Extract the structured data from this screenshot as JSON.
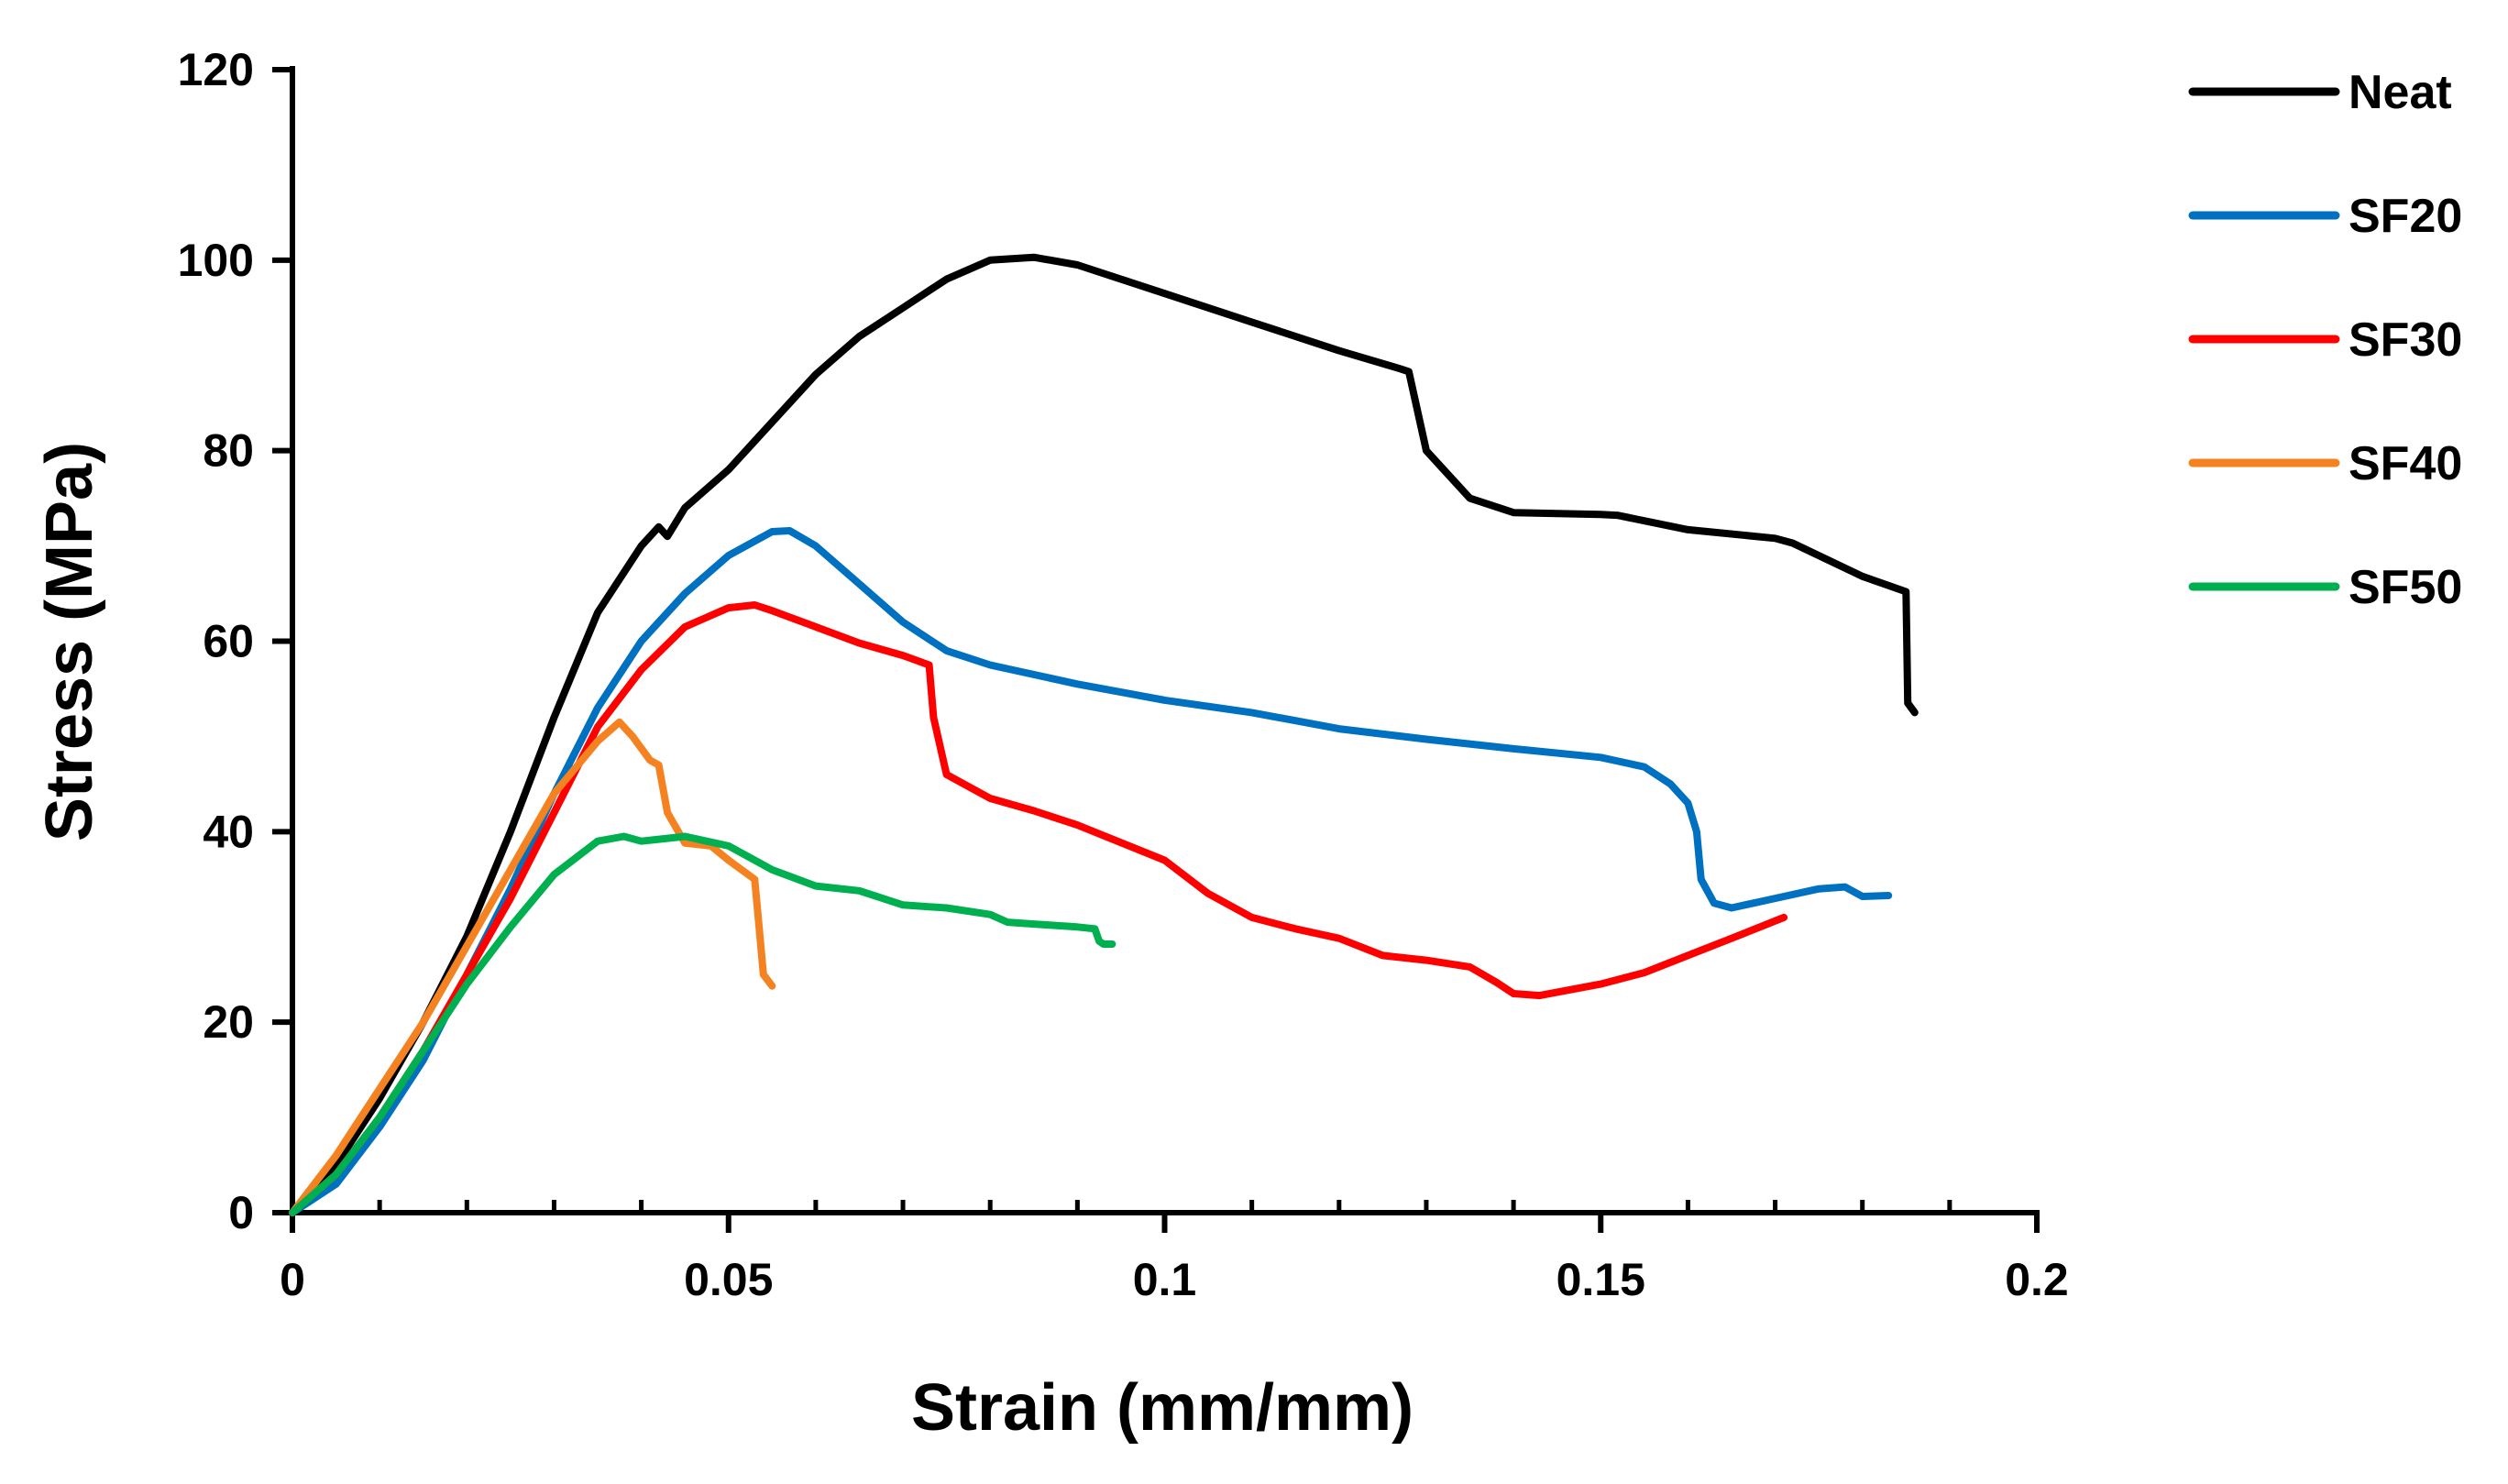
{
  "chart_data": {
    "type": "line",
    "title": "",
    "xlabel": "Strain (mm/mm)",
    "ylabel": "Stress (MPa)",
    "xlim": [
      0,
      0.2
    ],
    "ylim": [
      0,
      120
    ],
    "x_ticks": [
      0,
      0.05,
      0.1,
      0.15,
      0.2
    ],
    "x_tick_labels": [
      "0",
      "0.05",
      "0.1",
      "0.15",
      "0.2"
    ],
    "x_minor_step": 0.01,
    "y_ticks": [
      0,
      20,
      40,
      60,
      80,
      100,
      120
    ],
    "y_tick_labels": [
      "0",
      "20",
      "40",
      "60",
      "80",
      "100",
      "120"
    ],
    "grid": false,
    "legend_position": "right",
    "series": [
      {
        "name": "Neat",
        "color": "#000000",
        "points": [
          [
            0,
            0
          ],
          [
            0.005,
            5
          ],
          [
            0.01,
            12
          ],
          [
            0.015,
            20
          ],
          [
            0.02,
            29
          ],
          [
            0.025,
            40
          ],
          [
            0.03,
            52
          ],
          [
            0.035,
            63
          ],
          [
            0.04,
            70
          ],
          [
            0.042,
            72
          ],
          [
            0.043,
            71
          ],
          [
            0.045,
            74
          ],
          [
            0.05,
            78
          ],
          [
            0.055,
            83
          ],
          [
            0.06,
            88
          ],
          [
            0.065,
            92
          ],
          [
            0.07,
            95
          ],
          [
            0.075,
            98
          ],
          [
            0.08,
            100
          ],
          [
            0.085,
            100.3
          ],
          [
            0.09,
            99.5
          ],
          [
            0.1,
            96.5
          ],
          [
            0.11,
            93.5
          ],
          [
            0.12,
            90.5
          ],
          [
            0.127,
            88.6
          ],
          [
            0.128,
            88.3
          ],
          [
            0.13,
            80
          ],
          [
            0.135,
            75
          ],
          [
            0.14,
            73.5
          ],
          [
            0.15,
            73.3
          ],
          [
            0.152,
            73.2
          ],
          [
            0.16,
            71.7
          ],
          [
            0.17,
            70.8
          ],
          [
            0.172,
            70.3
          ],
          [
            0.18,
            66.8
          ],
          [
            0.185,
            65.2
          ],
          [
            0.1852,
            53.5
          ],
          [
            0.186,
            52.5
          ]
        ]
      },
      {
        "name": "SF20",
        "color": "#0070C0",
        "points": [
          [
            0,
            0
          ],
          [
            0.005,
            3
          ],
          [
            0.01,
            9
          ],
          [
            0.015,
            16
          ],
          [
            0.02,
            25
          ],
          [
            0.025,
            34
          ],
          [
            0.03,
            44
          ],
          [
            0.035,
            53
          ],
          [
            0.04,
            60
          ],
          [
            0.045,
            65
          ],
          [
            0.05,
            69
          ],
          [
            0.055,
            71.5
          ],
          [
            0.057,
            71.6
          ],
          [
            0.06,
            70
          ],
          [
            0.065,
            66
          ],
          [
            0.07,
            62
          ],
          [
            0.075,
            59
          ],
          [
            0.08,
            57.5
          ],
          [
            0.09,
            55.5
          ],
          [
            0.1,
            53.8
          ],
          [
            0.11,
            52.5
          ],
          [
            0.12,
            50.8
          ],
          [
            0.13,
            49.7
          ],
          [
            0.14,
            48.7
          ],
          [
            0.15,
            47.8
          ],
          [
            0.155,
            46.8
          ],
          [
            0.158,
            45
          ],
          [
            0.16,
            43
          ],
          [
            0.161,
            40
          ],
          [
            0.1615,
            35
          ],
          [
            0.163,
            32.5
          ],
          [
            0.165,
            32
          ],
          [
            0.17,
            33
          ],
          [
            0.175,
            34
          ],
          [
            0.178,
            34.2
          ],
          [
            0.18,
            33.2
          ],
          [
            0.183,
            33.3
          ]
        ]
      },
      {
        "name": "SF30",
        "color": "#FF0000",
        "points": [
          [
            0,
            0
          ],
          [
            0.005,
            4
          ],
          [
            0.01,
            10
          ],
          [
            0.015,
            17
          ],
          [
            0.02,
            25
          ],
          [
            0.025,
            33
          ],
          [
            0.03,
            42
          ],
          [
            0.035,
            51
          ],
          [
            0.04,
            57
          ],
          [
            0.045,
            61.5
          ],
          [
            0.05,
            63.5
          ],
          [
            0.053,
            63.8
          ],
          [
            0.055,
            63.2
          ],
          [
            0.06,
            61.5
          ],
          [
            0.065,
            59.8
          ],
          [
            0.07,
            58.5
          ],
          [
            0.073,
            57.5
          ],
          [
            0.0735,
            52
          ],
          [
            0.075,
            46
          ],
          [
            0.08,
            43.5
          ],
          [
            0.085,
            42.2
          ],
          [
            0.09,
            40.7
          ],
          [
            0.1,
            37
          ],
          [
            0.105,
            33.5
          ],
          [
            0.11,
            31
          ],
          [
            0.115,
            29.8
          ],
          [
            0.12,
            28.8
          ],
          [
            0.125,
            27
          ],
          [
            0.13,
            26.5
          ],
          [
            0.135,
            25.8
          ],
          [
            0.138,
            24.2
          ],
          [
            0.14,
            23
          ],
          [
            0.143,
            22.8
          ],
          [
            0.15,
            24
          ],
          [
            0.155,
            25.2
          ],
          [
            0.16,
            27
          ],
          [
            0.165,
            28.8
          ],
          [
            0.171,
            31
          ]
        ]
      },
      {
        "name": "SF40",
        "color": "#F58220",
        "points": [
          [
            0,
            0
          ],
          [
            0.005,
            6
          ],
          [
            0.01,
            13
          ],
          [
            0.015,
            20
          ],
          [
            0.02,
            28
          ],
          [
            0.025,
            36
          ],
          [
            0.03,
            44
          ],
          [
            0.035,
            49.5
          ],
          [
            0.0375,
            51.5
          ],
          [
            0.039,
            50
          ],
          [
            0.041,
            47.5
          ],
          [
            0.042,
            47
          ],
          [
            0.043,
            42
          ],
          [
            0.045,
            38.8
          ],
          [
            0.048,
            38.5
          ],
          [
            0.05,
            37
          ],
          [
            0.053,
            35
          ],
          [
            0.0535,
            30
          ],
          [
            0.054,
            25
          ],
          [
            0.055,
            23.8
          ]
        ]
      },
      {
        "name": "SF50",
        "color": "#00B050",
        "points": [
          [
            0,
            0
          ],
          [
            0.005,
            4
          ],
          [
            0.01,
            10
          ],
          [
            0.015,
            17
          ],
          [
            0.02,
            24
          ],
          [
            0.025,
            30
          ],
          [
            0.03,
            35.5
          ],
          [
            0.035,
            39
          ],
          [
            0.038,
            39.5
          ],
          [
            0.04,
            39
          ],
          [
            0.043,
            39.3
          ],
          [
            0.045,
            39.5
          ],
          [
            0.05,
            38.5
          ],
          [
            0.052,
            37.5
          ],
          [
            0.055,
            36
          ],
          [
            0.06,
            34.3
          ],
          [
            0.065,
            33.8
          ],
          [
            0.07,
            32.3
          ],
          [
            0.075,
            32
          ],
          [
            0.08,
            31.3
          ],
          [
            0.082,
            30.5
          ],
          [
            0.085,
            30.3
          ],
          [
            0.09,
            30
          ],
          [
            0.092,
            29.8
          ],
          [
            0.0925,
            28.5
          ],
          [
            0.093,
            28.2
          ],
          [
            0.094,
            28.2
          ]
        ]
      }
    ]
  }
}
